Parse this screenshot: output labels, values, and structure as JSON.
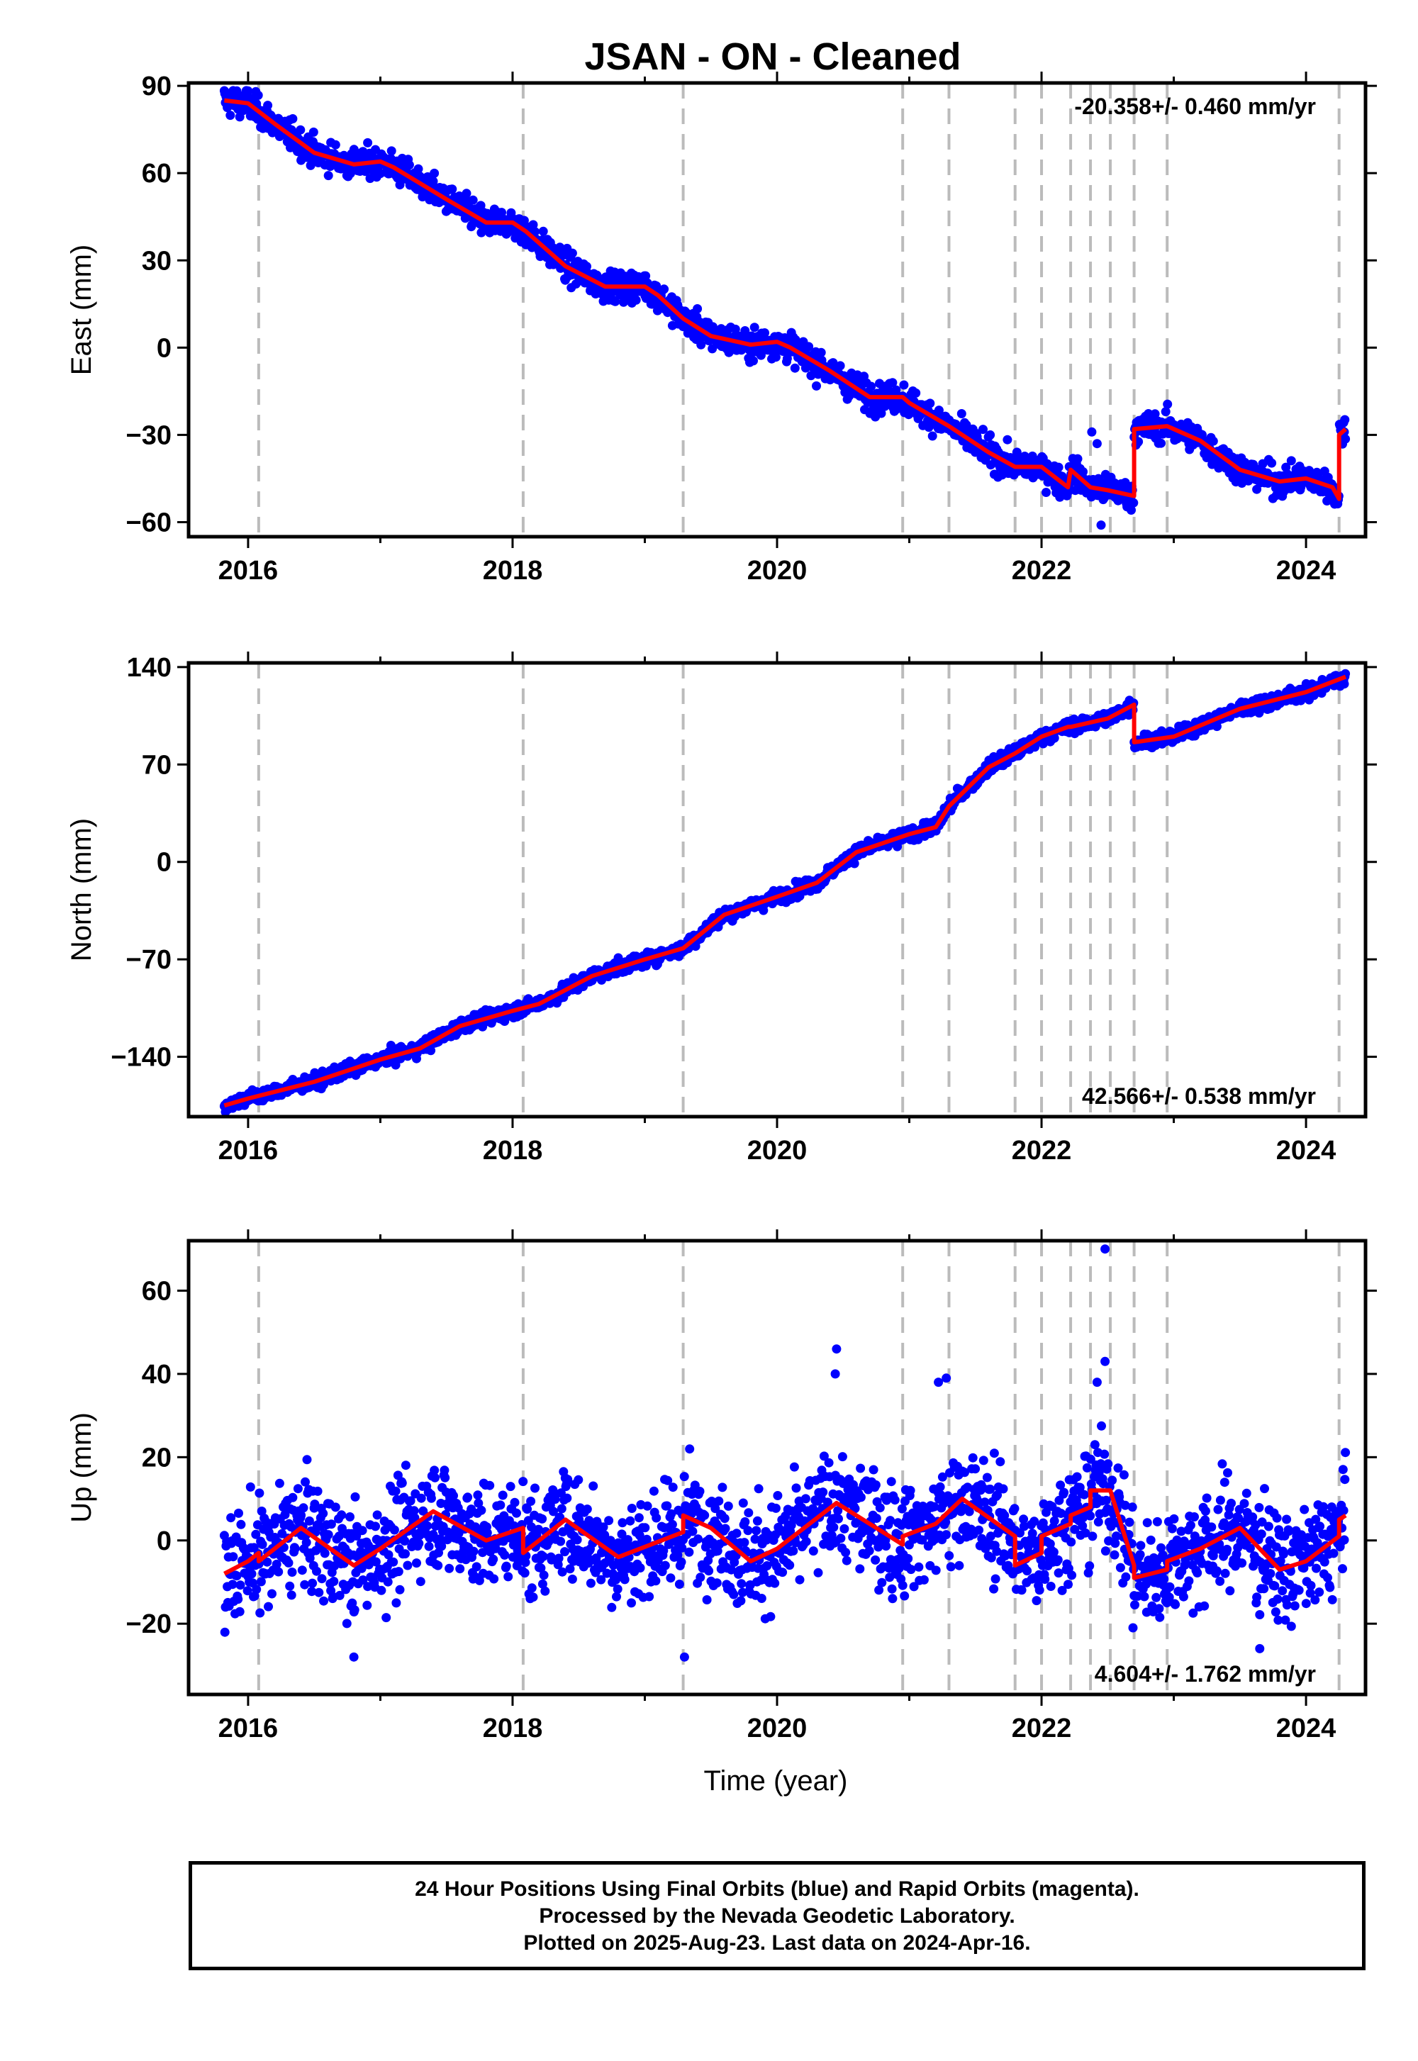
{
  "title": "JSAN  - ON - Cleaned",
  "footer": {
    "line1": "24 Hour Positions Using Final Orbits (blue) and Rapid Orbits (magenta).",
    "line2": "Processed by the Nevada Geodetic Laboratory.",
    "line3": "Plotted on 2025-Aug-23. Last data on 2024-Apr-16."
  },
  "colors": {
    "data_points": "#0000ff",
    "model_fit": "#ff0000",
    "breaks": "#bbbbbb",
    "axes": "#000000"
  },
  "chart_data": [
    {
      "type": "scatter",
      "ylabel": "East (mm)",
      "xlabel": "",
      "rate_text": "-20.358+/- 0.460 mm/yr",
      "rate_position": "top-right",
      "xlim": [
        2015.55,
        2024.45
      ],
      "ylim": [
        -65,
        91
      ],
      "xticks": [
        2016,
        2018,
        2020,
        2022,
        2024
      ],
      "yticks": [
        90,
        60,
        30,
        0,
        -30,
        -60
      ],
      "ytick_labels": [
        "90",
        "60",
        "30",
        "0",
        "−30",
        "−60"
      ],
      "equipment_breaks": [
        2016.08,
        2018.08,
        2019.29,
        2020.95,
        2021.3,
        2021.8,
        2022.0,
        2022.22,
        2022.37,
        2022.52,
        2022.7,
        2022.95,
        2024.25
      ],
      "model": {
        "x": [
          2015.82,
          2016.0,
          2016.2,
          2016.5,
          2016.8,
          2017.0,
          2017.1,
          2017.5,
          2017.8,
          2018.0,
          2018.1,
          2018.4,
          2018.7,
          2019.0,
          2019.1,
          2019.29,
          2019.5,
          2019.8,
          2020.0,
          2020.1,
          2020.4,
          2020.7,
          2020.95,
          2021.0,
          2021.3,
          2021.6,
          2021.8,
          2022.0,
          2022.2,
          2022.22,
          2022.37,
          2022.5,
          2022.7,
          2022.7,
          2022.95,
          2023.2,
          2023.5,
          2023.8,
          2024.0,
          2024.2,
          2024.25,
          2024.25,
          2024.3
        ],
        "y": [
          85,
          84,
          77,
          67,
          63,
          64,
          62,
          51,
          43,
          43,
          40,
          28,
          21,
          21,
          18,
          10,
          4,
          1,
          2,
          0,
          -8,
          -17,
          -17,
          -19,
          -27,
          -36,
          -41,
          -41,
          -48,
          -42,
          -48,
          -49,
          -51,
          -28,
          -27,
          -32,
          -42,
          -46,
          -45,
          -48,
          -52,
          -30,
          -28
        ]
      },
      "points": {
        "noise": 2.5,
        "outliers": [
          [
            2022.45,
            -61
          ],
          [
            2022.38,
            -29
          ],
          [
            2022.42,
            -33
          ]
        ]
      }
    },
    {
      "type": "scatter",
      "ylabel": "North (mm)",
      "xlabel": "",
      "rate_text": "42.566+/- 0.538 mm/yr",
      "rate_position": "bottom-right",
      "xlim": [
        2015.55,
        2024.45
      ],
      "ylim": [
        -183,
        143
      ],
      "xticks": [
        2016,
        2018,
        2020,
        2022,
        2024
      ],
      "yticks": [
        140,
        70,
        0,
        -70,
        -140
      ],
      "ytick_labels": [
        "140",
        "70",
        "0",
        "−70",
        "−140"
      ],
      "equipment_breaks": [
        2016.08,
        2018.08,
        2019.29,
        2020.95,
        2021.3,
        2021.8,
        2022.0,
        2022.22,
        2022.37,
        2022.52,
        2022.7,
        2022.95,
        2024.25
      ],
      "model": {
        "x": [
          2015.82,
          2016.0,
          2016.5,
          2017.0,
          2017.3,
          2017.6,
          2018.0,
          2018.2,
          2018.6,
          2019.0,
          2019.29,
          2019.6,
          2020.0,
          2020.3,
          2020.6,
          2021.0,
          2021.2,
          2021.3,
          2021.6,
          2021.8,
          2022.0,
          2022.2,
          2022.22,
          2022.5,
          2022.7,
          2022.7,
          2023.0,
          2023.5,
          2024.0,
          2024.3
        ],
        "y": [
          -175,
          -170,
          -158,
          -142,
          -134,
          -118,
          -107,
          -102,
          -82,
          -70,
          -62,
          -38,
          -25,
          -15,
          7,
          20,
          25,
          40,
          68,
          78,
          90,
          97,
          97,
          103,
          113,
          86,
          90,
          110,
          122,
          133
        ]
      },
      "points": {
        "noise": 2.5,
        "outliers": []
      }
    },
    {
      "type": "scatter",
      "ylabel": "Up (mm)",
      "xlabel": "Time (year)",
      "rate_text": "4.604+/- 1.762 mm/yr",
      "rate_position": "bottom-right",
      "xlim": [
        2015.55,
        2024.45
      ],
      "ylim": [
        -37,
        72
      ],
      "xticks": [
        2016,
        2018,
        2020,
        2022,
        2024
      ],
      "yticks": [
        60,
        40,
        20,
        0,
        -20
      ],
      "ytick_labels": [
        "60",
        "40",
        "20",
        "0",
        "−20"
      ],
      "equipment_breaks": [
        2016.08,
        2018.08,
        2019.29,
        2020.95,
        2021.3,
        2021.8,
        2022.0,
        2022.22,
        2022.37,
        2022.52,
        2022.7,
        2022.95,
        2024.25
      ],
      "model": {
        "x": [
          2015.82,
          2016.0,
          2016.08,
          2016.08,
          2016.4,
          2016.8,
          2017.0,
          2017.4,
          2017.8,
          2018.08,
          2018.08,
          2018.4,
          2018.8,
          2019.29,
          2019.29,
          2019.5,
          2019.8,
          2020.0,
          2020.45,
          2020.95,
          2020.95,
          2021.2,
          2021.4,
          2021.8,
          2021.8,
          2022.0,
          2022.0,
          2022.22,
          2022.22,
          2022.37,
          2022.37,
          2022.52,
          2022.7,
          2022.7,
          2022.95,
          2022.95,
          2023.2,
          2023.5,
          2023.8,
          2024.0,
          2024.25,
          2024.25,
          2024.3
        ],
        "y": [
          -8,
          -5,
          -3,
          -5,
          3,
          -6,
          -2,
          7,
          0,
          3,
          -3,
          5,
          -4,
          2,
          6,
          3,
          -5,
          -2,
          9,
          -1,
          1,
          4,
          10,
          1,
          -6,
          -3,
          1,
          4,
          6,
          8,
          12,
          12,
          -6,
          -9,
          -7,
          -5,
          -2,
          3,
          -7,
          -5,
          1,
          5,
          6
        ]
      },
      "points": {
        "noise": 6.5,
        "outliers": [
          [
            2022.48,
            70
          ],
          [
            2022.48,
            43
          ],
          [
            2022.42,
            38
          ],
          [
            2020.45,
            46
          ],
          [
            2020.44,
            40
          ],
          [
            2021.28,
            39
          ],
          [
            2021.22,
            38
          ],
          [
            2019.3,
            -28
          ],
          [
            2016.8,
            -28
          ],
          [
            2023.65,
            -26
          ]
        ]
      }
    }
  ]
}
